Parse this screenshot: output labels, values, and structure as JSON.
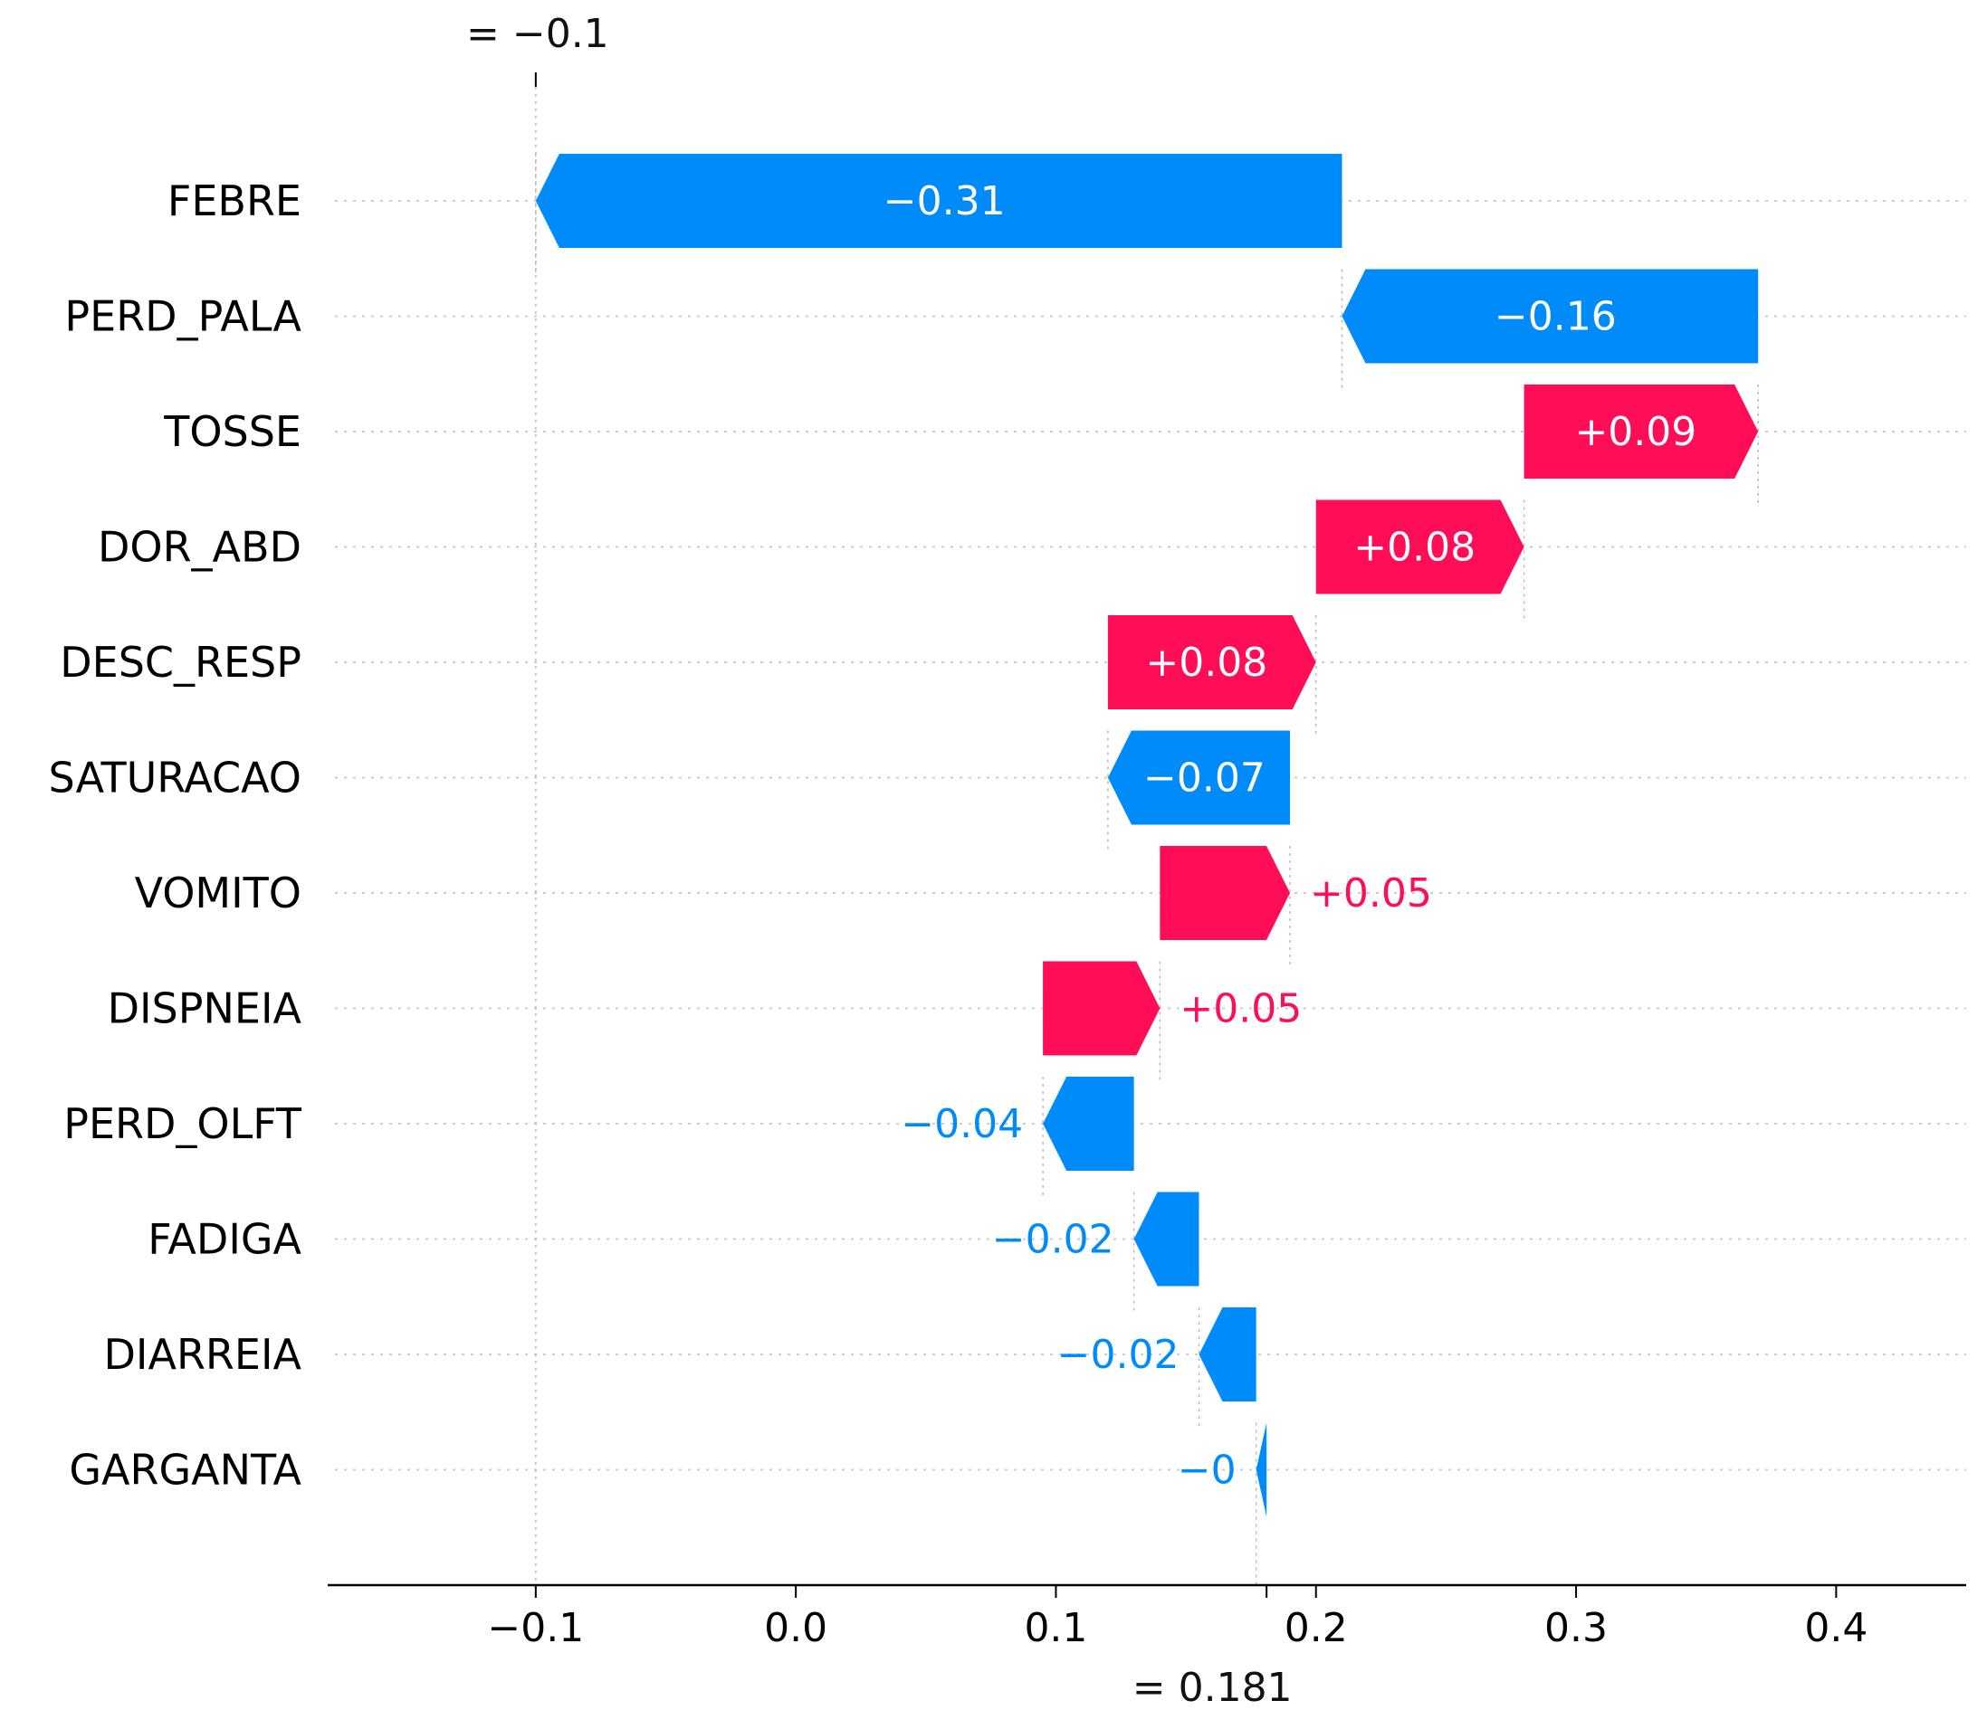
{
  "colors": {
    "positive": "#ff0d57",
    "negative": "#008bfb",
    "axis": "#000000"
  },
  "chart_data": {
    "type": "waterfall",
    "base_value": -0.1,
    "base_label": "= −0.1",
    "final_value": 0.181,
    "final_label": "= 0.181",
    "xlim": [
      -0.18,
      0.45
    ],
    "xticks": [
      {
        "value": -0.1,
        "label": "−0.1"
      },
      {
        "value": 0.0,
        "label": "0.0"
      },
      {
        "value": 0.1,
        "label": "0.1"
      },
      {
        "value": 0.2,
        "label": "0.2"
      },
      {
        "value": 0.3,
        "label": "0.3"
      },
      {
        "value": 0.4,
        "label": "0.4"
      }
    ],
    "features": [
      {
        "name": "FEBRE",
        "start": 0.21,
        "end": -0.1,
        "label": "−0.31"
      },
      {
        "name": "PERD_PALA",
        "start": 0.37,
        "end": 0.21,
        "label": "−0.16"
      },
      {
        "name": "TOSSE",
        "start": 0.28,
        "end": 0.37,
        "label": "+0.09"
      },
      {
        "name": "DOR_ABD",
        "start": 0.2,
        "end": 0.28,
        "label": "+0.08"
      },
      {
        "name": "DESC_RESP",
        "start": 0.12,
        "end": 0.2,
        "label": "+0.08"
      },
      {
        "name": "SATURACAO",
        "start": 0.19,
        "end": 0.12,
        "label": "−0.07"
      },
      {
        "name": "VOMITO",
        "start": 0.14,
        "end": 0.19,
        "label": "+0.05"
      },
      {
        "name": "DISPNEIA",
        "start": 0.095,
        "end": 0.14,
        "label": "+0.05"
      },
      {
        "name": "PERD_OLFT",
        "start": 0.13,
        "end": 0.095,
        "label": "−0.04"
      },
      {
        "name": "FADIGA",
        "start": 0.155,
        "end": 0.13,
        "label": "−0.02"
      },
      {
        "name": "DIARREIA",
        "start": 0.177,
        "end": 0.155,
        "label": "−0.02"
      },
      {
        "name": "GARGANTA",
        "start": 0.181,
        "end": 0.177,
        "label": "−0"
      }
    ]
  }
}
